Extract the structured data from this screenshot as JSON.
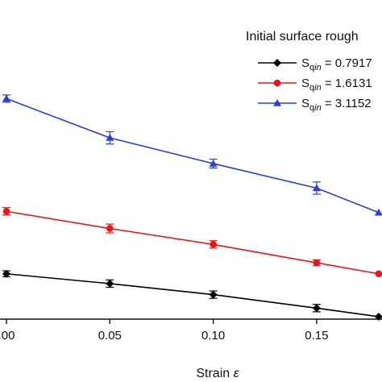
{
  "chart_data": {
    "type": "line",
    "xlabel_prefix": "Strain ",
    "xlabel_symbol": "ε",
    "ylabel": "",
    "xlim": [
      -0.002,
      0.18
    ],
    "ylim": [
      0.0,
      10.0
    ],
    "x_ticks": [
      0.0,
      0.05,
      0.1,
      0.15
    ],
    "x_tick_labels": [
      ".00",
      "0.05",
      "0.10",
      "0.15"
    ],
    "grid": false,
    "legend": {
      "placement": "top-right",
      "title": "Initial surface rough",
      "items_base": "S",
      "items_sub": "q",
      "items_sub_italic": "in",
      "items_rest": [
        " = 0.7917",
        " = 1.6131",
        " = 3.1152"
      ]
    },
    "series": [
      {
        "color": "#000000",
        "marker": "diamond",
        "x": [
          0.0,
          0.05,
          0.1,
          0.15,
          0.18
        ],
        "y": [
          1.85,
          1.45,
          1.0,
          0.45,
          0.1
        ],
        "err": [
          0.12,
          0.15,
          0.15,
          0.15,
          0
        ]
      },
      {
        "color": "#e8161b",
        "marker": "circle",
        "x": [
          0.0,
          0.05,
          0.1,
          0.15,
          0.18
        ],
        "y": [
          4.4,
          3.7,
          3.05,
          2.3,
          1.85
        ],
        "err": [
          0.15,
          0.18,
          0.15,
          0.12,
          0
        ]
      },
      {
        "color": "#2c3fd6",
        "marker": "triangle",
        "x": [
          0.0,
          0.05,
          0.1,
          0.15,
          0.18
        ],
        "y": [
          9.0,
          7.4,
          6.35,
          5.35,
          4.35
        ],
        "err": [
          0.15,
          0.25,
          0.18,
          0.25,
          0
        ]
      }
    ]
  }
}
